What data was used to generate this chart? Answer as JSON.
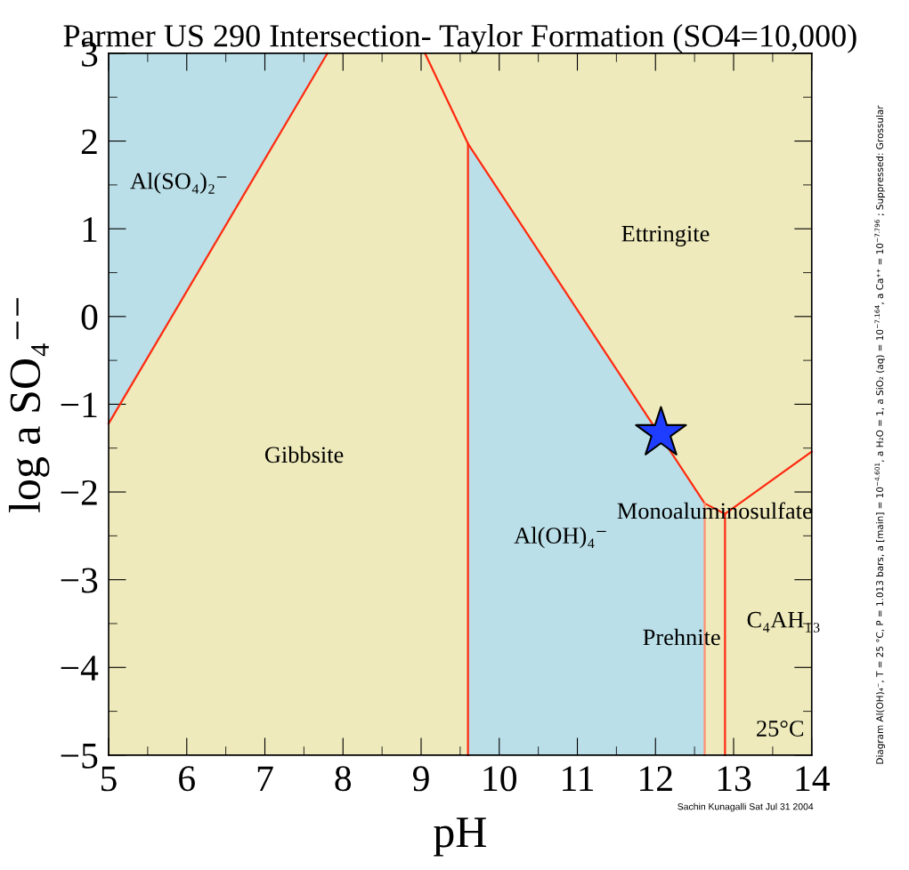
{
  "chart_data": {
    "type": "line",
    "title": "Parmer US 290 Intersection- Taylor Formation (SO4=10,000)",
    "xlabel": "pH",
    "ylabel": "log a SO₄⁻⁻",
    "xlim": [
      5,
      14
    ],
    "ylim": [
      -5,
      3
    ],
    "xticks": [
      5,
      6,
      7,
      8,
      9,
      10,
      11,
      12,
      13,
      14
    ],
    "yticks": [
      {
        "value": -5,
        "label": "−5"
      },
      {
        "value": -4,
        "label": "−4"
      },
      {
        "value": -3,
        "label": "−3"
      },
      {
        "value": -2,
        "label": "−2"
      },
      {
        "value": -1,
        "label": "−1"
      },
      0,
      1,
      2,
      3
    ],
    "grid": false,
    "series": [
      {
        "color": "#ff2a10",
        "x": [
          5,
          7.8
        ],
        "values": [
          -1.22,
          3
        ]
      },
      {
        "color": "#ff2a10",
        "x": [
          9.05,
          9.6,
          12.63,
          12.89,
          14
        ],
        "values": [
          3,
          1.97,
          -2.13,
          -2.25,
          -1.54
        ]
      },
      {
        "color": "#ff2a10",
        "x": [
          9.6,
          9.6
        ],
        "values": [
          1.97,
          -5
        ]
      },
      {
        "color": "#ff9070",
        "x": [
          12.63,
          12.63
        ],
        "values": [
          -2.13,
          -5
        ]
      },
      {
        "color": "#ff2a10",
        "x": [
          12.89,
          12.89
        ],
        "values": [
          -2.25,
          -5
        ]
      },
      {
        "type": "scatter",
        "color": "#1f3dff",
        "marker": "star",
        "x": [
          12.07
        ],
        "values": [
          -1.33
        ]
      }
    ],
    "annotations": [
      "Al(SO₄)₂⁻",
      "Gibbsite",
      "Ettringite",
      "Al(OH)₄⁻",
      "Monoaluminosulfate",
      "Prehnite",
      "C₄AH₁₃",
      "25°C",
      "Diagram Al(OH)₄⁻, T = 25 °C, P = 1.013 bars, a [main] = 10$^{−4.601}$, a H₂O = 1, a SiO₂ (aq) = 10$^{−7.164}$, a Ca⁺⁺ = 10$^{−7.796}$ ; Suppressed: Grossular",
      "Sachin Kunagalli Sat Jul 31 2004"
    ]
  }
}
